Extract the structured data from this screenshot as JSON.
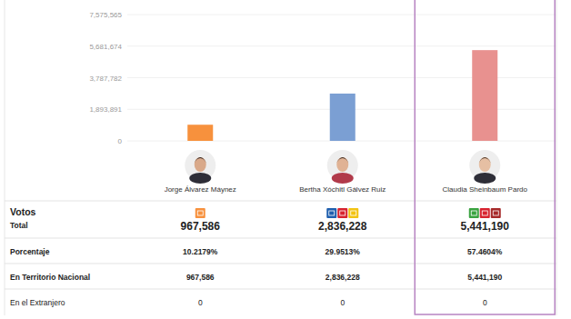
{
  "chart_data": {
    "type": "bar",
    "categories": [
      "Jorge Álvarez Máynez",
      "Bertha Xóchitl Gálvez Ruiz",
      "Claudia Sheinbaum Pardo"
    ],
    "values": [
      967586,
      2836228,
      5441190
    ],
    "colors": [
      "#f7913d",
      "#7b9fd3",
      "#e8918f"
    ],
    "ylim": [
      0,
      7575565
    ],
    "yticks": [
      0,
      {
        "value": 1893891,
        "label": "1,893,891"
      },
      {
        "value": 3787782,
        "label": "3,787,782"
      },
      {
        "value": 5681674,
        "label": "5,681,674"
      },
      {
        "value": 7575565,
        "label": "7,575,565"
      }
    ],
    "grid": true
  },
  "table": {
    "header": "Votos",
    "rows": [
      {
        "label": "Total",
        "cells": [
          "967,586",
          "2,836,228",
          "5,441,190"
        ]
      },
      {
        "label": "Porcentaje",
        "cells": [
          "10.2179%",
          "29.9513%",
          "57.4604%"
        ]
      },
      {
        "label": "En Territorio Nacional",
        "cells": [
          "967,586",
          "2,836,228",
          "5,441,190"
        ]
      },
      {
        "label": "En el Extranjero",
        "cells": [
          "0",
          "0",
          "0"
        ]
      }
    ]
  }
}
